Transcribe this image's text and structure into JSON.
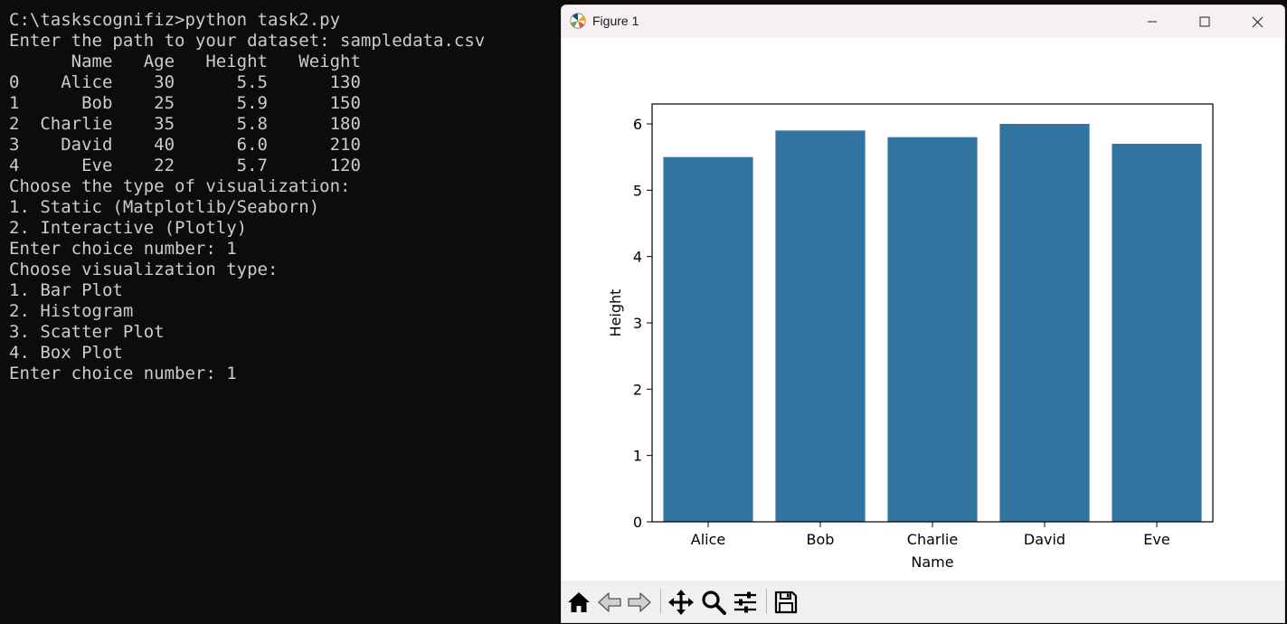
{
  "terminal": {
    "lines": [
      "C:\\taskscognifiz>python task2.py",
      "Enter the path to your dataset: sampledata.csv",
      "      Name   Age   Height   Weight",
      "0    Alice    30      5.5      130",
      "1      Bob    25      5.9      150",
      "2  Charlie    35      5.8      180",
      "3    David    40      6.0      210",
      "4      Eve    22      5.7      120",
      "Choose the type of visualization:",
      "1. Static (Matplotlib/Seaborn)",
      "2. Interactive (Plotly)",
      "Enter choice number: 1",
      "Choose visualization type:",
      "1. Bar Plot",
      "2. Histogram",
      "3. Scatter Plot",
      "4. Box Plot",
      "Enter choice number: 1"
    ]
  },
  "window": {
    "title": "Figure 1",
    "app_icon": "matplotlib-logo-icon",
    "controls": [
      "minimize-icon",
      "maximize-icon",
      "close-icon"
    ]
  },
  "toolbar": {
    "buttons": [
      "home-icon",
      "back-arrow-icon",
      "forward-arrow-icon",
      "pan-move-icon",
      "zoom-magnifier-icon",
      "configure-subplots-icon",
      "save-floppy-icon"
    ]
  },
  "colors": {
    "bar": "#3274a1",
    "terminal_bg": "#0c0c0c",
    "terminal_fg": "#cccccc",
    "titlebar_bg": "#f6eff4",
    "toolbar_bg": "#f0f0f0"
  },
  "chart_data": {
    "type": "bar",
    "categories": [
      "Alice",
      "Bob",
      "Charlie",
      "David",
      "Eve"
    ],
    "values": [
      5.5,
      5.9,
      5.8,
      6.0,
      5.7
    ],
    "xlabel": "Name",
    "ylabel": "Height",
    "ylim": [
      0,
      6.3
    ],
    "yticks": [
      "0",
      "1",
      "2",
      "3",
      "4",
      "5",
      "6"
    ],
    "grid": false,
    "legend": "none"
  }
}
